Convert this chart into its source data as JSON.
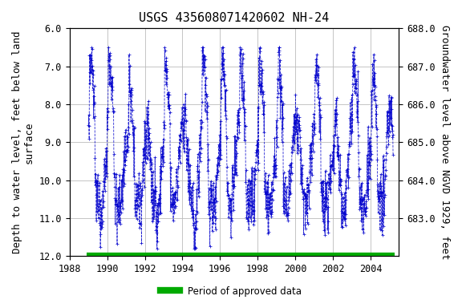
{
  "title": "USGS 435608071420602 NH-24",
  "ylabel_left": "Depth to water level, feet below land\nsurface",
  "ylabel_right": "Groundwater level above NGVD 1929, feet",
  "ylim_left": [
    6.0,
    12.0
  ],
  "ylim_right": [
    688.0,
    682.0
  ],
  "xlim": [
    1988,
    2005.5
  ],
  "xticks": [
    1988,
    1990,
    1992,
    1994,
    1996,
    1998,
    2000,
    2002,
    2004
  ],
  "yticks_left": [
    6.0,
    7.0,
    8.0,
    9.0,
    10.0,
    11.0,
    12.0
  ],
  "yticks_right": [
    688.0,
    687.0,
    686.0,
    685.0,
    684.0,
    683.0
  ],
  "data_color": "#0000CC",
  "approved_color": "#00AA00",
  "approved_y": 12.0,
  "approved_start": 1988.9,
  "approved_end": 2005.3,
  "legend_label": "Period of approved data",
  "background_color": "#ffffff",
  "plot_bg_color": "#ffffff",
  "grid_color": "#bbbbbb",
  "title_fontsize": 11,
  "axis_label_fontsize": 9,
  "tick_fontsize": 8.5
}
